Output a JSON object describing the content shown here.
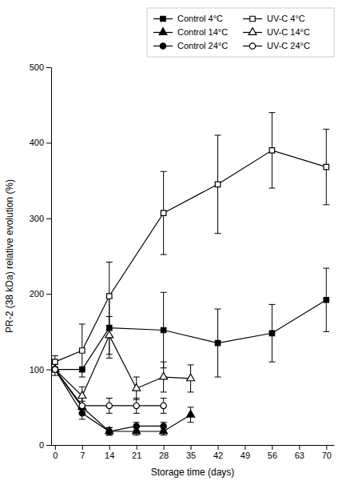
{
  "chart_data": {
    "type": "line",
    "xlabel": "Storage time (days)",
    "ylabel": "PR-2 (38 kDa) relative evolution (%)",
    "xlim": [
      -1,
      72
    ],
    "xticks": [
      0,
      7,
      14,
      21,
      28,
      35,
      42,
      49,
      56,
      63,
      70
    ],
    "ylim": [
      0,
      500
    ],
    "yticks": [
      0,
      100,
      200,
      300,
      400,
      500
    ],
    "legend": "upper right",
    "series": [
      {
        "name": "Control 4°C",
        "color": "#000000",
        "marker": "square",
        "x": [
          0,
          7,
          14,
          28,
          42,
          56,
          70
        ],
        "values": [
          100,
          100,
          155,
          152,
          135,
          148,
          192
        ],
        "yerr": [
          8,
          0,
          40,
          50,
          45,
          38,
          42
        ]
      },
      {
        "name": "UV-C 4°C",
        "color": "#000000",
        "marker": "square-open",
        "x": [
          0,
          7,
          14,
          28,
          42,
          56,
          70
        ],
        "values": [
          110,
          125,
          197,
          307,
          345,
          390,
          368
        ],
        "yerr": [
          8,
          35,
          45,
          55,
          65,
          50,
          50
        ]
      },
      {
        "name": "Control 14°C",
        "color": "#000000",
        "marker": "triangle",
        "x": [
          0,
          7,
          14,
          21,
          28,
          35
        ],
        "values": [
          100,
          50,
          18,
          18,
          18,
          40
        ],
        "yerr": [
          0,
          8,
          5,
          5,
          5,
          10
        ]
      },
      {
        "name": "UV-C 14°C",
        "color": "#000000",
        "marker": "triangle-open",
        "x": [
          0,
          7,
          14,
          21,
          28,
          35
        ],
        "values": [
          100,
          65,
          145,
          75,
          90,
          88
        ],
        "yerr": [
          0,
          12,
          25,
          15,
          20,
          18
        ]
      },
      {
        "name": "Control 24°C",
        "color": "#000000",
        "marker": "circle",
        "x": [
          0,
          7,
          14,
          21,
          28
        ],
        "values": [
          100,
          42,
          18,
          25,
          25
        ],
        "yerr": [
          0,
          8,
          5,
          5,
          5
        ]
      },
      {
        "name": "UV-C 24°C",
        "color": "#000000",
        "marker": "circle-open",
        "x": [
          0,
          7,
          14,
          21,
          28
        ],
        "values": [
          100,
          52,
          52,
          52,
          52
        ],
        "yerr": [
          0,
          10,
          10,
          10,
          10
        ]
      }
    ]
  }
}
